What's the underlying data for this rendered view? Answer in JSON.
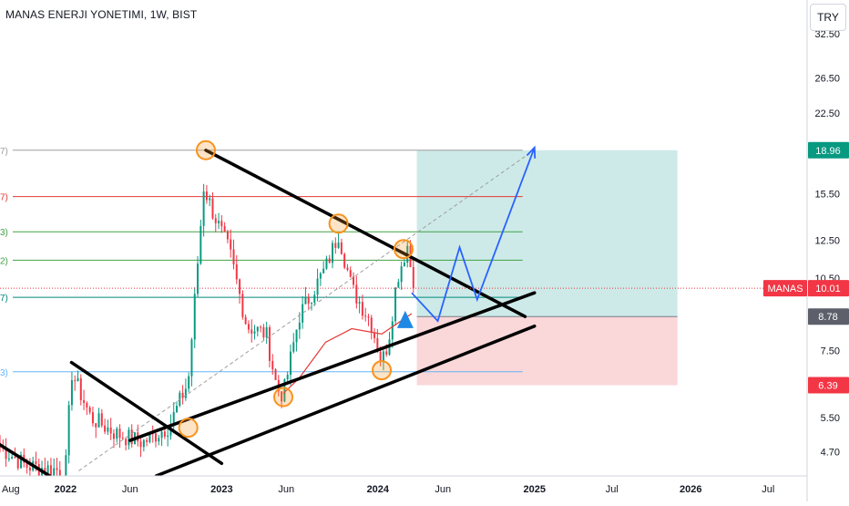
{
  "header": {
    "title": "MANAS ENERJI YONETIMI, 1W, BIST",
    "currency_button": "TRY"
  },
  "colors": {
    "candle_up": "#089981",
    "candle_down": "#f23645",
    "trendline": "#000000",
    "projection": "#2962ff",
    "target_zone": "#b2dfdb",
    "stop_zone": "#f8c9cc",
    "marker_ring": "#f7931e",
    "moving_average": "#e53935",
    "last_price_badge": "#f23645",
    "target_badge": "#089981",
    "stop_badge": "#f23645",
    "entry_badge": "#5d606b"
  },
  "chart_data": {
    "type": "candlestick",
    "symbol": "MANAS",
    "interval": "1W",
    "exchange": "BIST",
    "currency": "TRY",
    "y_scale": "log",
    "ylim": [
      4.2,
      38.0
    ],
    "xlim": [
      "2021-08-01",
      "2026-09-30"
    ],
    "y_ticks": [
      4.7,
      5.5,
      7.5,
      10.5,
      12.5,
      15.5,
      18.96,
      22.5,
      26.5,
      32.5
    ],
    "y_tick_labels": [
      "4.70",
      "5.50",
      "7.50",
      "10.50",
      "12.50",
      "15.50",
      "18.96",
      "22.50",
      "26.50",
      "32.50"
    ],
    "x_ticks": [
      {
        "date": "2021-08-01",
        "label": "Aug"
      },
      {
        "date": "2022-01-01",
        "label": "2022"
      },
      {
        "date": "2022-06-01",
        "label": "Jun"
      },
      {
        "date": "2023-01-01",
        "label": "2023"
      },
      {
        "date": "2023-06-01",
        "label": "Jun"
      },
      {
        "date": "2024-01-01",
        "label": "2024"
      },
      {
        "date": "2024-06-01",
        "label": "Jun"
      },
      {
        "date": "2025-01-01",
        "label": "2025"
      },
      {
        "date": "2025-07-01",
        "label": "Jul"
      },
      {
        "date": "2026-01-01",
        "label": "2026"
      },
      {
        "date": "2026-07-01",
        "label": "Jul"
      }
    ],
    "price_keypoints": [
      {
        "date": "2021-08-01",
        "close": 4.8
      },
      {
        "date": "2021-10-01",
        "close": 4.4
      },
      {
        "date": "2022-01-01",
        "close": 4.3
      },
      {
        "date": "2022-01-15",
        "close": 6.8
      },
      {
        "date": "2022-03-01",
        "close": 5.5
      },
      {
        "date": "2022-05-01",
        "close": 5.1
      },
      {
        "date": "2022-07-01",
        "close": 4.9
      },
      {
        "date": "2022-09-01",
        "close": 5.3
      },
      {
        "date": "2022-10-15",
        "close": 6.5
      },
      {
        "date": "2022-11-20",
        "close": 16.0
      },
      {
        "date": "2022-12-15",
        "close": 14.0
      },
      {
        "date": "2023-01-20",
        "close": 11.8
      },
      {
        "date": "2023-03-01",
        "close": 8.4
      },
      {
        "date": "2023-04-15",
        "close": 8.1
      },
      {
        "date": "2023-05-10",
        "close": 6.3
      },
      {
        "date": "2023-05-25",
        "close": 6.1
      },
      {
        "date": "2023-07-01",
        "close": 8.8
      },
      {
        "date": "2023-09-01",
        "close": 11.0
      },
      {
        "date": "2023-10-01",
        "close": 12.9
      },
      {
        "date": "2023-11-01",
        "close": 10.0
      },
      {
        "date": "2023-12-15",
        "close": 8.6
      },
      {
        "date": "2024-01-10",
        "close": 7.1
      },
      {
        "date": "2024-01-25",
        "close": 7.8
      },
      {
        "date": "2024-02-15",
        "close": 10.5
      },
      {
        "date": "2024-03-10",
        "close": 12.2
      },
      {
        "date": "2024-03-25",
        "close": 10.01
      }
    ],
    "horizontal_levels": [
      {
        "value": 18.96,
        "color": "#9e9e9e",
        "left_label": "7)"
      },
      {
        "value": 15.3,
        "color": "#e53935",
        "left_label": "7)"
      },
      {
        "value": 13.0,
        "color": "#43a047",
        "left_label": "3)"
      },
      {
        "value": 11.4,
        "color": "#43a047",
        "left_label": "2)"
      },
      {
        "value": 9.6,
        "color": "#00897b",
        "left_label": "7)"
      },
      {
        "value": 6.8,
        "color": "#64b5f6",
        "left_label": "3)"
      }
    ],
    "trendlines": [
      {
        "from": {
          "date": "2022-11-25",
          "value": 18.96
        },
        "to": {
          "date": "2024-12-10",
          "value": 8.78
        }
      },
      {
        "from": {
          "date": "2022-06-01",
          "value": 4.95
        },
        "to": {
          "date": "2025-01-01",
          "value": 9.8
        }
      },
      {
        "from": {
          "date": "2022-08-01",
          "value": 4.2
        },
        "to": {
          "date": "2025-01-01",
          "value": 8.4
        }
      },
      {
        "from": {
          "date": "2022-01-15",
          "value": 7.1
        },
        "to": {
          "date": "2023-01-01",
          "value": 4.45
        }
      },
      {
        "from": {
          "date": "2021-08-01",
          "value": 4.85
        },
        "to": {
          "date": "2021-11-25",
          "value": 4.2
        }
      }
    ],
    "dashed_trend": {
      "from": {
        "date": "2022-02-01",
        "value": 4.3
      },
      "to": {
        "date": "2025-01-01",
        "value": 19.0
      }
    },
    "marked_pivots": [
      {
        "date": "2022-10-15",
        "value": 5.25
      },
      {
        "date": "2022-11-25",
        "value": 18.96
      },
      {
        "date": "2023-05-25",
        "value": 6.05
      },
      {
        "date": "2023-10-01",
        "value": 13.5
      },
      {
        "date": "2024-01-10",
        "value": 6.85
      },
      {
        "date": "2024-03-01",
        "value": 12.0
      }
    ],
    "projection_path": [
      {
        "date": "2024-03-20",
        "value": 9.8
      },
      {
        "date": "2024-05-20",
        "value": 8.6
      },
      {
        "date": "2024-07-10",
        "value": 12.1
      },
      {
        "date": "2024-08-20",
        "value": 9.5
      },
      {
        "date": "2025-01-01",
        "value": 19.2
      }
    ],
    "long_position": {
      "start": "2024-04-01",
      "end": "2025-12-01",
      "entry": 8.78,
      "target": 18.96,
      "stop": 6.39
    },
    "moving_average": [
      {
        "date": "2023-05-25",
        "value": 6.15
      },
      {
        "date": "2023-07-01",
        "value": 6.6
      },
      {
        "date": "2023-09-01",
        "value": 7.8
      },
      {
        "date": "2023-11-01",
        "value": 8.3
      },
      {
        "date": "2024-01-10",
        "value": 8.1
      },
      {
        "date": "2024-03-20",
        "value": 8.9
      }
    ],
    "up_arrow": {
      "date": "2024-03-05",
      "value": 8.5
    },
    "price_badges": [
      {
        "symbol_label": "",
        "value_label": "18.96",
        "value": 18.96,
        "role": "target"
      },
      {
        "symbol_label": "MANAS",
        "value_label": "10.01",
        "value": 10.01,
        "role": "last"
      },
      {
        "symbol_label": "",
        "value_label": "8.78",
        "value": 8.78,
        "role": "entry"
      },
      {
        "symbol_label": "",
        "value_label": "6.39",
        "value": 6.39,
        "role": "stop"
      }
    ]
  }
}
